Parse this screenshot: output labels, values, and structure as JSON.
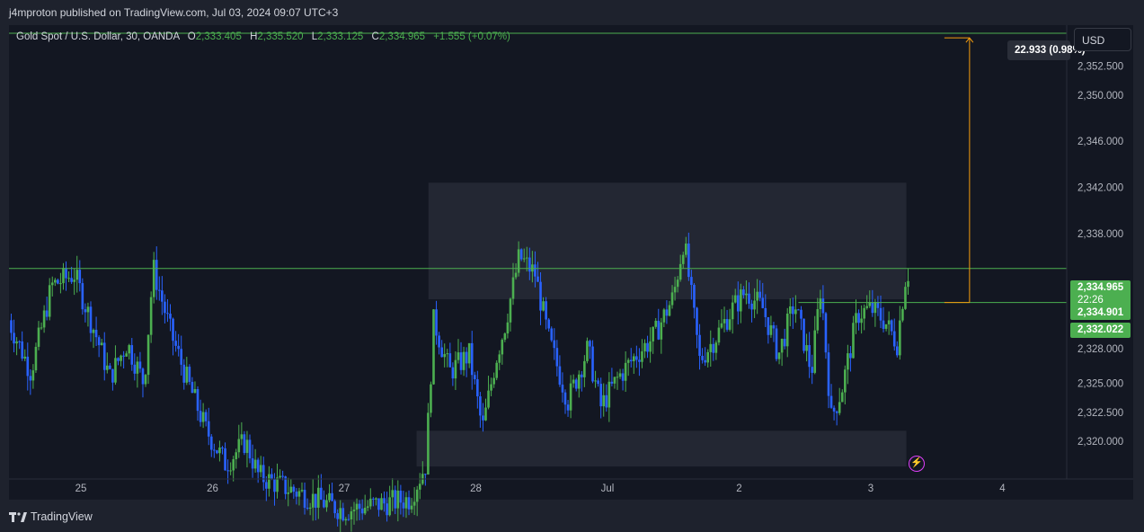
{
  "header": {
    "published": "j4mproton published on TradingView.com, Jul 03, 2024 09:07 UTC+3"
  },
  "legend": {
    "symbol": "Gold Spot / U.S. Dollar, 30, OANDA",
    "o_label": "O",
    "o_value": "2,333.405",
    "h_label": "H",
    "h_value": "2,335.520",
    "l_label": "L",
    "l_value": "2,333.125",
    "c_label": "C",
    "c_value": "2,334.965",
    "change": "+1.555 (+0.07%)"
  },
  "toolbar": {
    "currency_label": "USD"
  },
  "footer": {
    "brand": "TradingView"
  },
  "measure_label": "22.933 (0.98%)",
  "price_tag": {
    "current": "2,334.965",
    "countdown": "22:26",
    "open_level": "2,334.901",
    "low_level": "2,332.022"
  },
  "colors": {
    "background": "#131722",
    "up_candle": "#4caf50",
    "down_candle": "#2962ff",
    "price_line": "#4caf50",
    "measure_line": "#f59d0e",
    "zone": "#2a2e39"
  },
  "chart_data": {
    "type": "candlestick",
    "symbol": "Gold Spot / U.S. Dollar",
    "interval": "30",
    "ylim": [
      2317.5,
      2354.5
    ],
    "y_ticks": [
      {
        "value": 2352.5,
        "label": "2,352.500"
      },
      {
        "value": 2350.0,
        "label": "2,350.000"
      },
      {
        "value": 2346.0,
        "label": "2,346.000"
      },
      {
        "value": 2342.0,
        "label": "2,342.000"
      },
      {
        "value": 2338.0,
        "label": "2,338.000"
      },
      {
        "value": 2328.0,
        "label": "2,328.000"
      },
      {
        "value": 2325.0,
        "label": "2,325.000"
      },
      {
        "value": 2322.5,
        "label": "2,322.500"
      },
      {
        "value": 2320.0,
        "label": "2,320.000"
      }
    ],
    "x_ticks": [
      {
        "day": 0,
        "label": "25"
      },
      {
        "day": 1,
        "label": "26"
      },
      {
        "day": 2,
        "label": "27"
      },
      {
        "day": 3,
        "label": "28"
      },
      {
        "day": 4,
        "label": "Jul"
      },
      {
        "day": 5,
        "label": "2"
      },
      {
        "day": 6,
        "label": "3"
      },
      {
        "day": 7,
        "label": "4"
      }
    ],
    "last_price": 2334.965,
    "open_level": 2334.901,
    "low_level": 2332.022,
    "zones": [
      {
        "day_from": 2.64,
        "day_to": 6.27,
        "low": 2332.3,
        "high": 2342.4
      },
      {
        "day_from": 2.55,
        "day_to": 6.27,
        "low": 2317.8,
        "high": 2320.9
      }
    ],
    "measure": {
      "day": 6.75,
      "from": 2332.022,
      "to": 2354.955,
      "label": "22.933 (0.98%)"
    },
    "anchors": [
      {
        "d": -0.55,
        "p": 2330.5
      },
      {
        "d": -0.38,
        "p": 2326.0
      },
      {
        "d": -0.22,
        "p": 2333.5
      },
      {
        "d": -0.05,
        "p": 2334.5
      },
      {
        "d": 0.12,
        "p": 2329.0
      },
      {
        "d": 0.22,
        "p": 2325.5
      },
      {
        "d": 0.35,
        "p": 2328.5
      },
      {
        "d": 0.48,
        "p": 2325.0
      },
      {
        "d": 0.55,
        "p": 2335.0
      },
      {
        "d": 0.68,
        "p": 2329.5
      },
      {
        "d": 0.8,
        "p": 2325.5
      },
      {
        "d": 0.95,
        "p": 2321.0
      },
      {
        "d": 1.1,
        "p": 2318.0
      },
      {
        "d": 1.25,
        "p": 2320.0
      },
      {
        "d": 1.35,
        "p": 2317.0
      },
      {
        "d": 1.55,
        "p": 2316.0
      },
      {
        "d": 2.0,
        "p": 2314.0
      },
      {
        "d": 2.5,
        "p": 2315.0
      },
      {
        "d": 2.62,
        "p": 2318.0
      },
      {
        "d": 2.68,
        "p": 2330.5
      },
      {
        "d": 2.8,
        "p": 2326.0
      },
      {
        "d": 2.95,
        "p": 2327.5
      },
      {
        "d": 3.05,
        "p": 2321.0
      },
      {
        "d": 3.15,
        "p": 2327.0
      },
      {
        "d": 3.22,
        "p": 2330.0
      },
      {
        "d": 3.33,
        "p": 2336.0
      },
      {
        "d": 3.45,
        "p": 2334.5
      },
      {
        "d": 3.55,
        "p": 2329.0
      },
      {
        "d": 3.7,
        "p": 2323.5
      },
      {
        "d": 3.85,
        "p": 2328.0
      },
      {
        "d": 3.95,
        "p": 2323.0
      },
      {
        "d": 4.08,
        "p": 2325.5
      },
      {
        "d": 4.22,
        "p": 2327.5
      },
      {
        "d": 4.35,
        "p": 2329.0
      },
      {
        "d": 4.5,
        "p": 2332.5
      },
      {
        "d": 4.58,
        "p": 2337.5
      },
      {
        "d": 4.7,
        "p": 2327.0
      },
      {
        "d": 4.82,
        "p": 2329.0
      },
      {
        "d": 4.95,
        "p": 2331.5
      },
      {
        "d": 5.05,
        "p": 2333.0
      },
      {
        "d": 5.18,
        "p": 2331.5
      },
      {
        "d": 5.3,
        "p": 2327.5
      },
      {
        "d": 5.42,
        "p": 2332.0
      },
      {
        "d": 5.55,
        "p": 2326.0
      },
      {
        "d": 5.62,
        "p": 2333.5
      },
      {
        "d": 5.7,
        "p": 2322.0
      },
      {
        "d": 5.78,
        "p": 2324.5
      },
      {
        "d": 5.9,
        "p": 2331.0
      },
      {
        "d": 6.0,
        "p": 2331.5
      },
      {
        "d": 6.1,
        "p": 2330.5
      },
      {
        "d": 6.2,
        "p": 2328.5
      },
      {
        "d": 6.26,
        "p": 2334.0
      },
      {
        "d": 6.3,
        "p": 2334.965
      }
    ]
  }
}
